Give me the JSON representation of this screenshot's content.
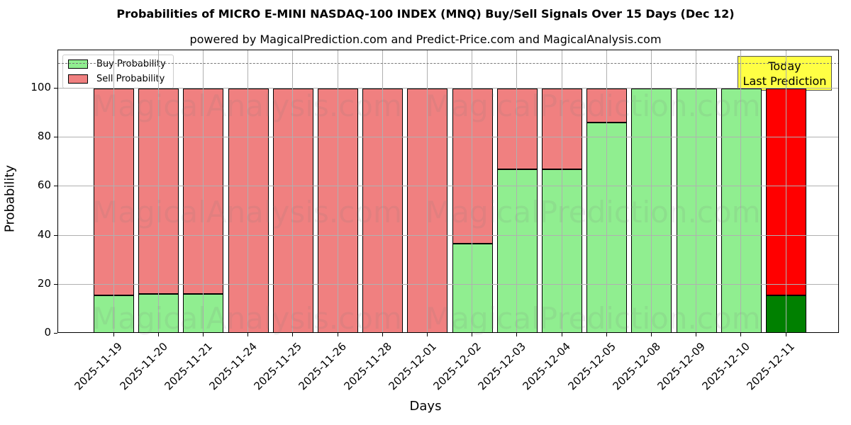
{
  "chart_data": {
    "type": "bar",
    "stacked": true,
    "title": "Probabilities of MICRO E-MINI NASDAQ-100 INDEX (MNQ) Buy/Sell Signals Over 15 Days (Dec 12)",
    "subtitle": "powered by MagicalPrediction.com and Predict-Price.com and MagicalAnalysis.com",
    "xlabel": "Days",
    "ylabel": "Probability",
    "ylim": [
      0,
      115
    ],
    "yticks": [
      0,
      20,
      40,
      60,
      80,
      100
    ],
    "reference_line": {
      "y": 110,
      "style": "dashed"
    },
    "grid": true,
    "legend_position": "upper left",
    "categories": [
      "2025-11-19",
      "2025-11-20",
      "2025-11-21",
      "2025-11-24",
      "2025-11-25",
      "2025-11-26",
      "2025-11-28",
      "2025-12-01",
      "2025-12-02",
      "2025-12-03",
      "2025-12-04",
      "2025-12-05",
      "2025-12-08",
      "2025-12-09",
      "2025-12-10",
      "2025-12-11"
    ],
    "series": [
      {
        "name": "Buy Probability",
        "color": "#90ee90",
        "values": [
          15.6,
          16.2,
          16.2,
          0,
          0,
          0,
          0,
          0,
          36.7,
          67,
          67,
          86,
          100,
          100,
          100,
          15.6
        ]
      },
      {
        "name": "Sell Probability",
        "color": "#f08080",
        "values": [
          84.4,
          83.8,
          83.8,
          100,
          100,
          100,
          100,
          100,
          63.3,
          33,
          33,
          14,
          0,
          0,
          0,
          84.4
        ]
      }
    ],
    "highlight": {
      "index": 15,
      "buy_color": "#008000",
      "sell_color": "#ff0000"
    },
    "annotation": {
      "line1": "Today",
      "line2": "Last Prediction"
    }
  },
  "watermarks": [
    "MagicalAnalysis.com",
    "MagicalPrediction.com"
  ]
}
